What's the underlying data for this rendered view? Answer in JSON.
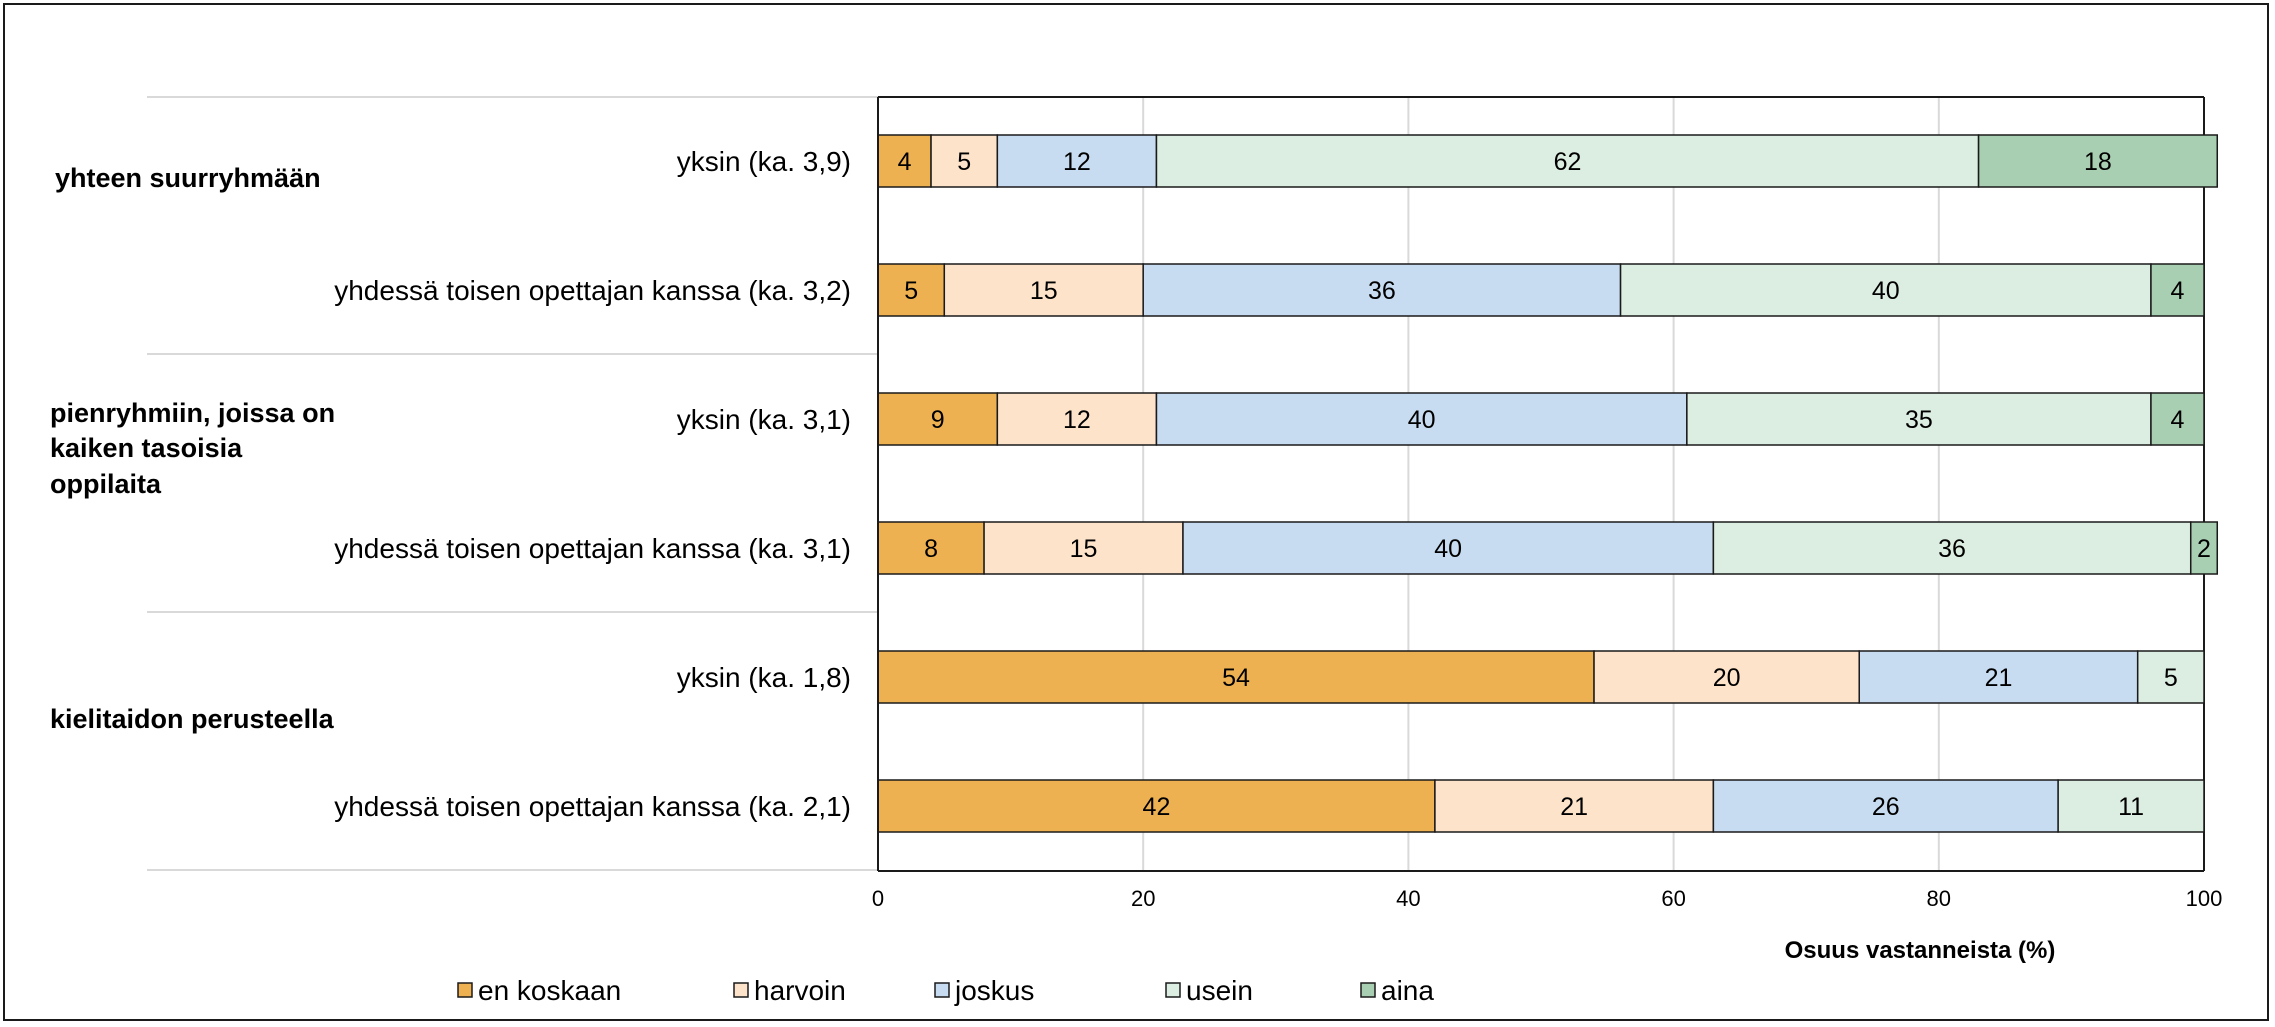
{
  "chart_data": {
    "type": "bar",
    "orientation": "horizontal",
    "stacked": true,
    "xlabel": "Osuus vastanneista (%)",
    "xlim": [
      0,
      100
    ],
    "xticks": [
      "0",
      "20",
      "40",
      "60",
      "80",
      "100"
    ],
    "grid": true,
    "legend_position": "bottom",
    "groups": [
      {
        "label": "yhteen suurryhmään",
        "lines": [
          "yhteen suurryhmään"
        ]
      },
      {
        "label": "pienryhmiin, joissa on kaiken tasoisia oppilaita",
        "lines": [
          "pienryhmiin, joissa on",
          "kaiken tasoisia",
          "oppilaita"
        ]
      },
      {
        "label": "kielitaidon perusteella",
        "lines": [
          "kielitaidon perusteella"
        ]
      }
    ],
    "categories": [
      "yksin (ka. 3,9)",
      "yhdessä toisen opettajan kanssa (ka. 3,2)",
      "yksin (ka. 3,1)",
      "yhdessä toisen opettajan kanssa (ka. 3,1)",
      "yksin (ka. 1,8)",
      "yhdessä toisen opettajan kanssa (ka. 2,1)"
    ],
    "series": [
      {
        "name": "en koskaan",
        "color": "#edb152",
        "values": [
          4,
          5,
          9,
          8,
          54,
          42
        ]
      },
      {
        "name": "harvoin",
        "color": "#fce3c9",
        "values": [
          5,
          15,
          12,
          15,
          20,
          21
        ]
      },
      {
        "name": "joskus",
        "color": "#c7dcf0",
        "values": [
          12,
          36,
          40,
          40,
          21,
          26
        ]
      },
      {
        "name": "usein",
        "color": "#dcede1",
        "values": [
          62,
          40,
          35,
          36,
          5,
          11
        ]
      },
      {
        "name": "aina",
        "color": "#a8cfb1",
        "values": [
          18,
          4,
          4,
          2,
          0,
          0
        ]
      }
    ]
  }
}
